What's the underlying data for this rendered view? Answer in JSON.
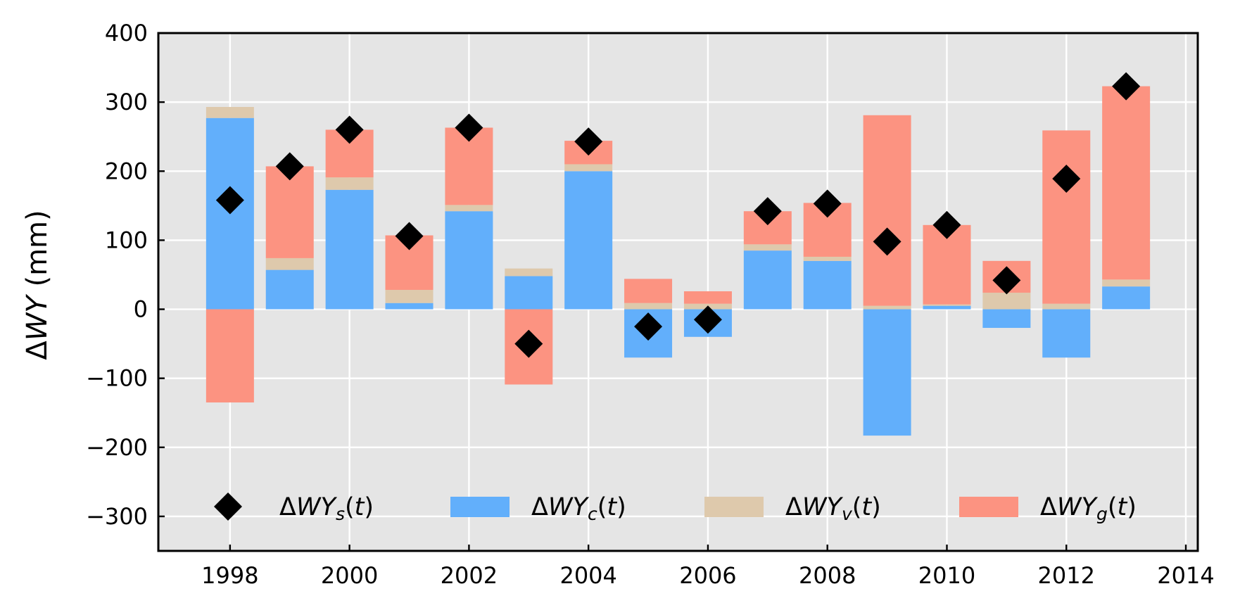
{
  "chart_data": {
    "type": "bar",
    "ylabel": "ΔWY (mm)",
    "x": [
      1998,
      1999,
      2000,
      2001,
      2002,
      2003,
      2004,
      2005,
      2006,
      2007,
      2008,
      2009,
      2010,
      2011,
      2012,
      2013
    ],
    "xlim": [
      1996.8,
      2014.2
    ],
    "ylim": [
      -350,
      400
    ],
    "xticks": [
      1998,
      2000,
      2002,
      2004,
      2006,
      2008,
      2010,
      2012,
      2014
    ],
    "yticks": [
      -300,
      -200,
      -100,
      0,
      100,
      200,
      300,
      400
    ],
    "ytick_labels": [
      "−300",
      "−200",
      "−100",
      "0",
      "100",
      "200",
      "300",
      "400"
    ],
    "grid": true,
    "legend_position": "lower center, single row",
    "series": [
      {
        "name": "ΔWY_s(t)",
        "kind": "marker",
        "marker": "diamond",
        "color": "#000000",
        "values": [
          158,
          207,
          260,
          106,
          263,
          -50,
          243,
          -25,
          -15,
          142,
          153,
          98,
          122,
          42,
          189,
          323
        ]
      },
      {
        "name": "ΔWY_c(t)",
        "kind": "bar",
        "color": "#62AFFB",
        "values": [
          277,
          57,
          173,
          9,
          142,
          48,
          200,
          -70,
          -40,
          85,
          70,
          -183,
          5,
          -27,
          -70,
          33
        ]
      },
      {
        "name": "ΔWY_v(t)",
        "kind": "bar",
        "color": "#DEC9AC",
        "values": [
          16,
          17,
          18,
          19,
          9,
          11,
          10,
          9,
          8,
          9,
          6,
          5,
          2,
          24,
          8,
          10
        ]
      },
      {
        "name": "ΔWY_g(t)",
        "kind": "bar",
        "color": "#FC9381",
        "values": [
          -135,
          133,
          69,
          79,
          112,
          -109,
          34,
          35,
          18,
          48,
          78,
          276,
          115,
          46,
          251,
          280
        ]
      }
    ],
    "legend": [
      {
        "label": "ΔWY_s(t)",
        "base": "ΔWY",
        "sub": "s",
        "suffix": "(t)",
        "marker": "diamond",
        "color": "#000000"
      },
      {
        "label": "ΔWY_c(t)",
        "base": "ΔWY",
        "sub": "c",
        "suffix": "(t)",
        "marker": "rect",
        "color": "#62AFFB"
      },
      {
        "label": "ΔWY_v(t)",
        "base": "ΔWY",
        "sub": "v",
        "suffix": "(t)",
        "marker": "rect",
        "color": "#DEC9AC"
      },
      {
        "label": "ΔWY_g(t)",
        "base": "ΔWY",
        "sub": "g",
        "suffix": "(t)",
        "marker": "rect",
        "color": "#FC9381"
      }
    ],
    "colors": {
      "plot_background": "#E5E5E5",
      "grid": "#FFFFFF"
    }
  }
}
